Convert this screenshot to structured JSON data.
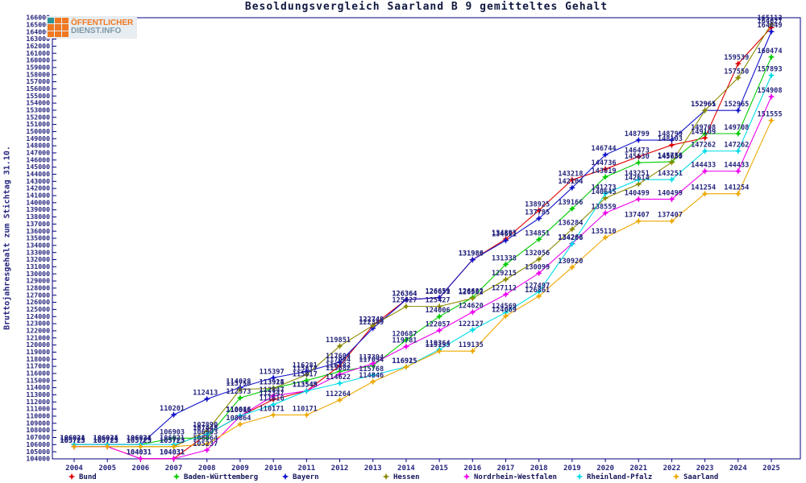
{
  "title": "Besoldungsvergleich Saarland B 9 gemitteltes Gehalt",
  "y_axis_label": "Bruttojahresgehalt zum Stichtag 31.10.",
  "logo": {
    "line1": "ÖFFENTLICHER",
    "line2": "DIENST.INFO"
  },
  "colors": {
    "axis": "#000080",
    "tick_text": "#26267e",
    "data_label_text": "#26267e",
    "title_text": "#101840",
    "legend_text": "#14145a",
    "logo_orange": "#f07820",
    "logo_teal": "#2f9396",
    "logo_gray_blue": "#7d99a9"
  },
  "chart_data": {
    "type": "line",
    "title": "Besoldungsvergleich Saarland B 9 gemitteltes Gehalt",
    "xlabel": "",
    "ylabel": "Bruttojahresgehalt zum Stichtag 31.10.",
    "ylim": [
      104000,
      166000
    ],
    "y_tick_step": 1000,
    "grid": false,
    "legend_position": "bottom",
    "point_labels": true,
    "x": [
      2004,
      2005,
      2006,
      2007,
      2008,
      2009,
      2010,
      2011,
      2012,
      2013,
      2014,
      2015,
      2016,
      2017,
      2018,
      2019,
      2020,
      2021,
      2022,
      2023,
      2024,
      2025
    ],
    "series": [
      {
        "name": "Bund",
        "color": "#e00000",
        "values": [
          105723,
          105723,
          104031,
          104031,
          107448,
          110016,
          112347,
          113545,
          117084,
          122749,
          126364,
          126651,
          131986,
          134893,
          138925,
          143218,
          144736,
          146473,
          148103,
          149109,
          159539,
          164627
        ]
      },
      {
        "name": "Baden-Württemberg",
        "color": "#00cc00",
        "values": [
          106024,
          106024,
          106024,
          106903,
          106903,
          112573,
          113924,
          115017,
          116282,
          117094,
          120687,
          124006,
          126682,
          131338,
          134851,
          139166,
          143619,
          145630,
          145753,
          149708,
          149708,
          160474
        ]
      },
      {
        "name": "Bayern",
        "color": "#1414cc",
        "values": [
          106034,
          106034,
          106034,
          110201,
          112413,
          114028,
          115397,
          116281,
          117604,
          122349,
          126364,
          126659,
          131980,
          134691,
          137785,
          142104,
          146744,
          148799,
          148799,
          152965,
          152965,
          164049
        ]
      },
      {
        "name": "Hessen",
        "color": "#8b8b00",
        "values": [
          105723,
          105723,
          105723,
          105723,
          107890,
          113758,
          113915,
          115817,
          119851,
          122748,
          125427,
          125427,
          126562,
          129215,
          132056,
          136284,
          140645,
          142614,
          145659,
          152961,
          157550,
          165113
        ]
      },
      {
        "name": "Nordrhein-Westfalen",
        "color": "#ee00ee",
        "values": [
          105723,
          105723,
          104031,
          104031,
          105237,
          110016,
          112847,
          113549,
          115882,
          117394,
          119781,
          122057,
          124620,
          127112,
          130099,
          134263,
          138559,
          140499,
          140499,
          144433,
          144433,
          154908
        ]
      },
      {
        "name": "Rheinland-Pfalz",
        "color": "#00dce6",
        "values": [
          106021,
          106021,
          106021,
          106021,
          107448,
          110046,
          111616,
          113543,
          114622,
          115768,
          116925,
          119364,
          122127,
          124569,
          127497,
          134206,
          141273,
          143251,
          143251,
          147262,
          147262,
          157893
        ]
      },
      {
        "name": "Saarland",
        "color": "#eea800",
        "values": [
          105723,
          105723,
          105723,
          105723,
          106064,
          108864,
          110171,
          110171,
          112264,
          114846,
          116915,
          119135,
          119135,
          124069,
          126861,
          130920,
          135110,
          137407,
          137407,
          141254,
          141254,
          151555
        ]
      }
    ]
  },
  "layout_note": "values read from on-chart point labels; heavily overlapped labels estimated"
}
